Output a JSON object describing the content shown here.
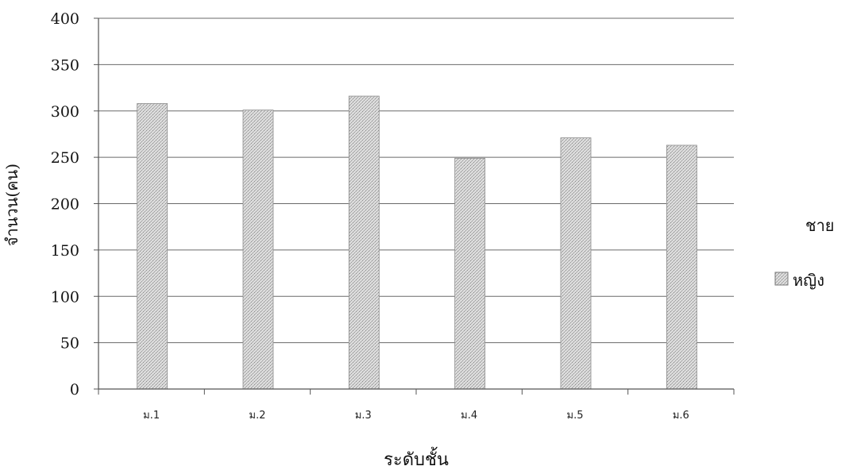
{
  "chart_data": {
    "type": "bar",
    "categories": [
      "ม.1",
      "ม.2",
      "ม.3",
      "ม.4",
      "ม.5",
      "ม.6"
    ],
    "series": [
      {
        "name": "ชาย",
        "values": [
          0,
          0,
          0,
          0,
          0,
          0
        ],
        "color": "#000000"
      },
      {
        "name": "หญิง",
        "values": [
          308,
          301,
          316,
          249,
          271,
          263
        ],
        "color": "#d6d6d6"
      }
    ],
    "ylabel": "จำนวน(คน)",
    "xlabel": "ระดับชั้น",
    "ylim": [
      0,
      400
    ],
    "yticks": [
      0,
      50,
      100,
      150,
      200,
      250,
      300,
      350,
      400
    ],
    "grid": true,
    "legend_position": "right"
  }
}
